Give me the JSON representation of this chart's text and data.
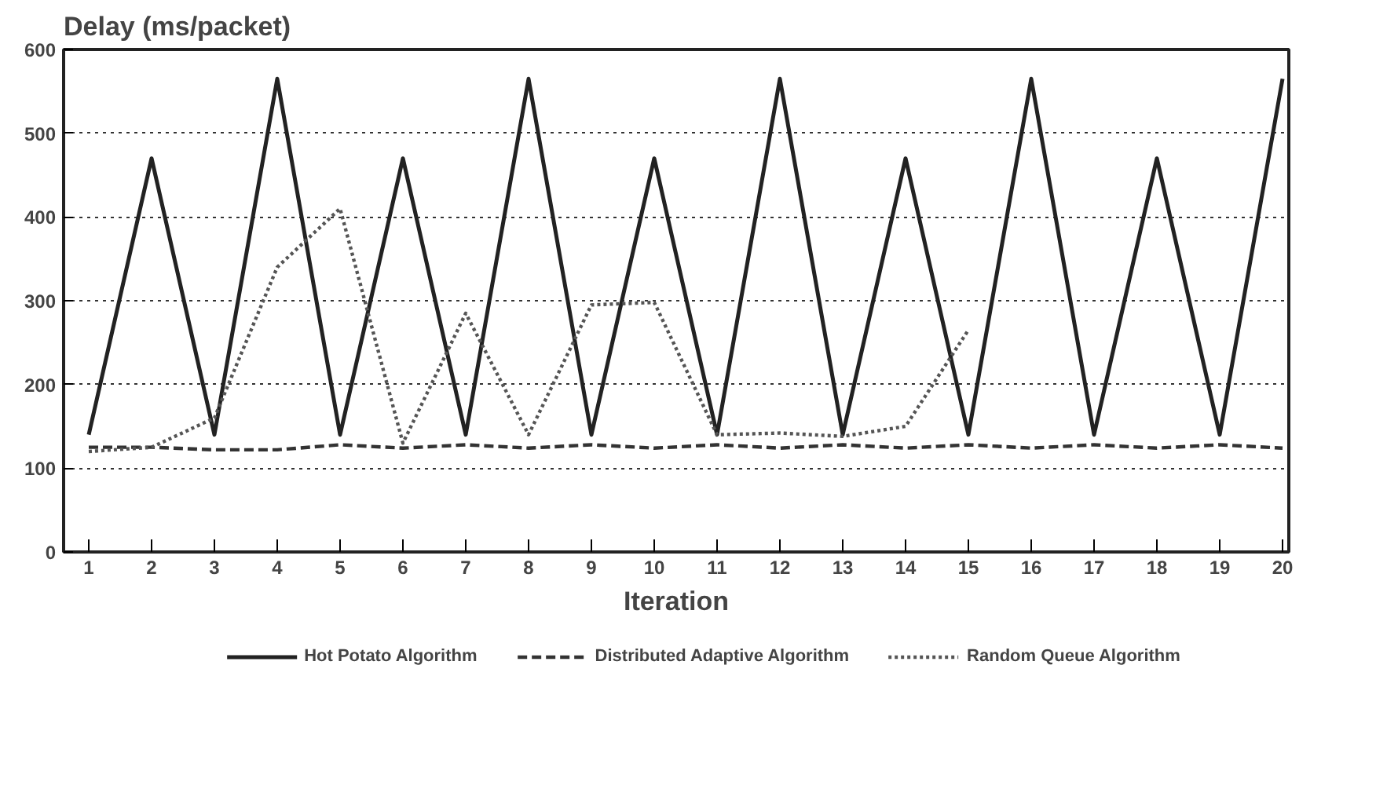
{
  "chart_data": {
    "type": "line",
    "ylabel": "Delay (ms/packet)",
    "xlabel": "Iteration",
    "x": [
      1,
      2,
      3,
      4,
      5,
      6,
      7,
      8,
      9,
      10,
      11,
      12,
      13,
      14,
      15,
      16,
      17,
      18,
      19,
      20
    ],
    "series": [
      {
        "name": "Hot Potato Algorithm",
        "color": "#222222",
        "line_style": "solid",
        "values": [
          140,
          470,
          140,
          565,
          140,
          470,
          140,
          565,
          140,
          470,
          140,
          565,
          140,
          470,
          140,
          565,
          140,
          470,
          140,
          565
        ]
      },
      {
        "name": "Distributed Adaptive Algorithm",
        "color": "#333333",
        "line_style": "dashed",
        "values": [
          125,
          125,
          122,
          122,
          128,
          124,
          128,
          124,
          128,
          124,
          128,
          124,
          128,
          124,
          128,
          124,
          128,
          124,
          128,
          124
        ]
      },
      {
        "name": "Random Queue Algorithm",
        "color": "#555555",
        "line_style": "dotted",
        "values": [
          120,
          125,
          160,
          340,
          410,
          130,
          285,
          140,
          295,
          298,
          140,
          142,
          138,
          150,
          265,
          null,
          null,
          null,
          null,
          null
        ]
      }
    ],
    "xlim": [
      0.6,
      20.1
    ],
    "ylim": [
      0,
      600
    ],
    "xticks": [
      1,
      2,
      3,
      4,
      5,
      6,
      7,
      8,
      9,
      10,
      11,
      12,
      13,
      14,
      15,
      16,
      17,
      18,
      19,
      20
    ],
    "yticks": [
      0,
      100,
      200,
      300,
      400,
      500,
      600
    ],
    "grid": "y",
    "legend": "bottom",
    "marker": "none"
  }
}
